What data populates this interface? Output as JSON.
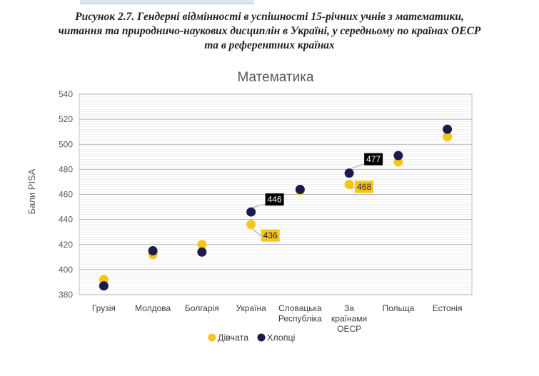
{
  "figure": {
    "caption_lines": [
      "Рисунок 2.7. Гендерні відмінності в успішності 15-річних учнів з математики,",
      "читання та природничо-наукових дисциплін в Україні, у середньому по країнах ОЕСР",
      "та в референтних країнах"
    ]
  },
  "chart_data": {
    "type": "scatter",
    "title": "Математика",
    "ylabel": "Бали PISA",
    "ylim": [
      380,
      540
    ],
    "ytick_step": 20,
    "y_ticks": [
      "380",
      "400",
      "420",
      "440",
      "460",
      "480",
      "500",
      "520",
      "540"
    ],
    "grid": true,
    "legend_position": "bottom",
    "categories": [
      [
        "Грузія"
      ],
      [
        "Молдова"
      ],
      [
        "Болгарія"
      ],
      [
        "Україна"
      ],
      [
        "Словацька",
        "Республіка"
      ],
      [
        "За",
        "країнами",
        "ОЕСР"
      ],
      [
        "Польща"
      ],
      [
        "Естонія"
      ]
    ],
    "series": [
      {
        "name": "Дівчата",
        "color": "#f5c518",
        "values": [
          392,
          412,
          420,
          436,
          463,
          468,
          486,
          506
        ]
      },
      {
        "name": "Хлопці",
        "color": "#1c1b4d",
        "values": [
          387,
          415,
          414,
          446,
          464,
          477,
          491,
          512
        ]
      }
    ],
    "data_labels": [
      {
        "series": 1,
        "index": 3,
        "text": "446",
        "bg": "#000000",
        "fg": "#ffffff"
      },
      {
        "series": 0,
        "index": 3,
        "text": "436",
        "bg": "#f5c518",
        "fg": "#1c1b4d"
      },
      {
        "series": 1,
        "index": 5,
        "text": "477",
        "bg": "#000000",
        "fg": "#ffffff"
      },
      {
        "series": 0,
        "index": 5,
        "text": "468",
        "bg": "#f5c518",
        "fg": "#1c1b4d"
      }
    ]
  }
}
